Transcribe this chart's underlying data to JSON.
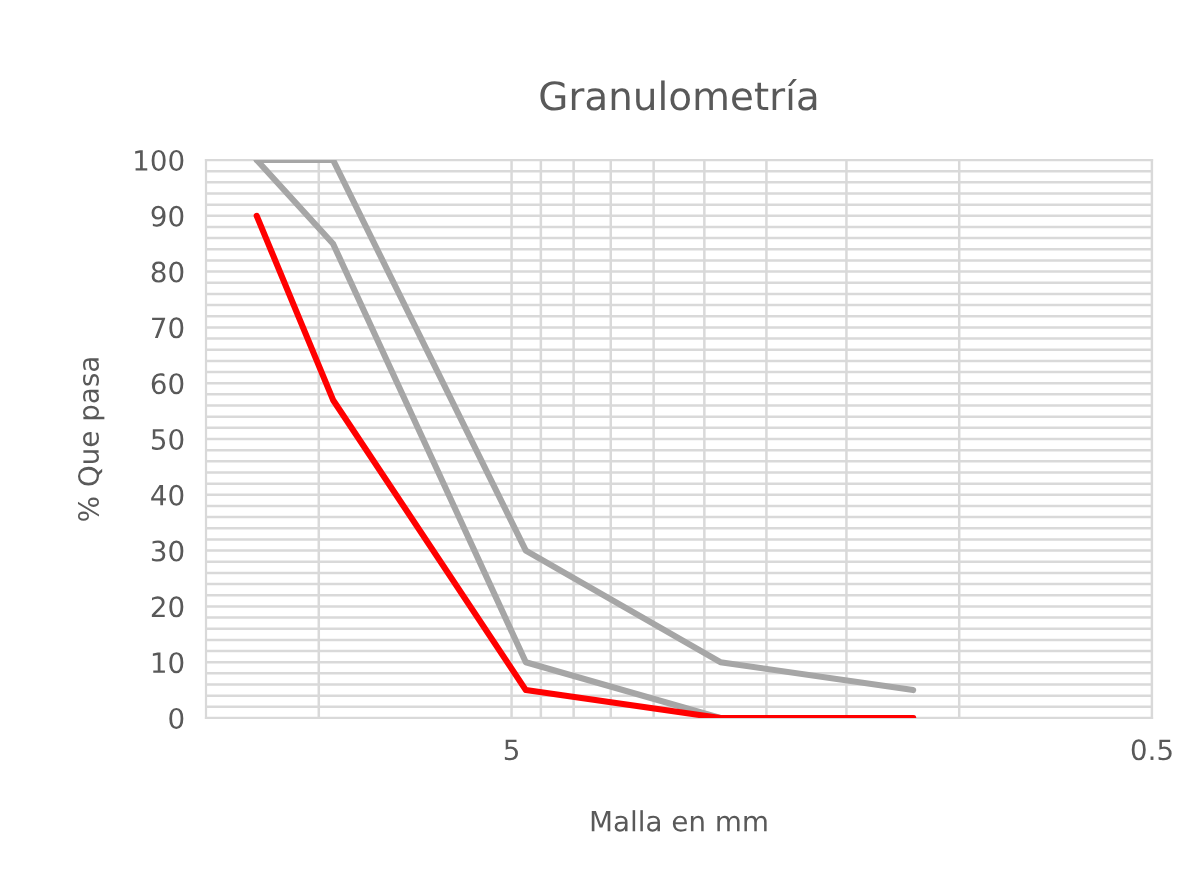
{
  "chart_data": {
    "type": "line",
    "title": "Granulometría",
    "xlabel": "Malla en mm",
    "ylabel": "% Que pasa",
    "x": [
      12.5,
      9.5,
      4.75,
      2.36,
      1.18
    ],
    "series": [
      {
        "color": "#a6a6a6",
        "values": [
          100,
          100,
          30,
          10,
          5
        ]
      },
      {
        "color": "#a6a6a6",
        "values": [
          100,
          85,
          10,
          0,
          0
        ]
      },
      {
        "color": "#ff0000",
        "values": [
          90,
          57,
          5,
          0,
          0
        ]
      }
    ],
    "log": "x",
    "xlim": [
      15,
      0.5
    ],
    "ylim": [
      0,
      100
    ],
    "xticks": [
      {
        "value": 10,
        "label": null
      },
      5,
      {
        "value": 4.5,
        "label": null
      },
      {
        "value": 4,
        "label": null
      },
      {
        "value": 3.5,
        "label": null
      },
      {
        "value": 3,
        "label": null
      },
      {
        "value": 2.5,
        "label": null
      },
      {
        "value": 2,
        "label": null
      },
      {
        "value": 1.5,
        "label": null
      },
      {
        "value": 1,
        "label": null
      },
      0.5
    ],
    "yticks": [
      0,
      {
        "value": 2,
        "label": null
      },
      {
        "value": 4,
        "label": null
      },
      {
        "value": 6,
        "label": null
      },
      {
        "value": 8,
        "label": null
      },
      10,
      {
        "value": 12,
        "label": null
      },
      {
        "value": 14,
        "label": null
      },
      {
        "value": 16,
        "label": null
      },
      {
        "value": 18,
        "label": null
      },
      20,
      {
        "value": 22,
        "label": null
      },
      {
        "value": 24,
        "label": null
      },
      {
        "value": 26,
        "label": null
      },
      {
        "value": 28,
        "label": null
      },
      30,
      {
        "value": 32,
        "label": null
      },
      {
        "value": 34,
        "label": null
      },
      {
        "value": 36,
        "label": null
      },
      {
        "value": 38,
        "label": null
      },
      40,
      {
        "value": 42,
        "label": null
      },
      {
        "value": 44,
        "label": null
      },
      {
        "value": 46,
        "label": null
      },
      {
        "value": 48,
        "label": null
      },
      50,
      {
        "value": 52,
        "label": null
      },
      {
        "value": 54,
        "label": null
      },
      {
        "value": 56,
        "label": null
      },
      {
        "value": 58,
        "label": null
      },
      60,
      {
        "value": 62,
        "label": null
      },
      {
        "value": 64,
        "label": null
      },
      {
        "value": 66,
        "label": null
      },
      {
        "value": 68,
        "label": null
      },
      70,
      {
        "value": 72,
        "label": null
      },
      {
        "value": 74,
        "label": null
      },
      {
        "value": 76,
        "label": null
      },
      {
        "value": 78,
        "label": null
      },
      80,
      {
        "value": 82,
        "label": null
      },
      {
        "value": 84,
        "label": null
      },
      {
        "value": 86,
        "label": null
      },
      {
        "value": 88,
        "label": null
      },
      90,
      {
        "value": 92,
        "label": null
      },
      {
        "value": 94,
        "label": null
      },
      {
        "value": 96,
        "label": null
      },
      {
        "value": 98,
        "label": null
      },
      100
    ],
    "grid": true,
    "marker": "none",
    "line_style": "solid"
  }
}
